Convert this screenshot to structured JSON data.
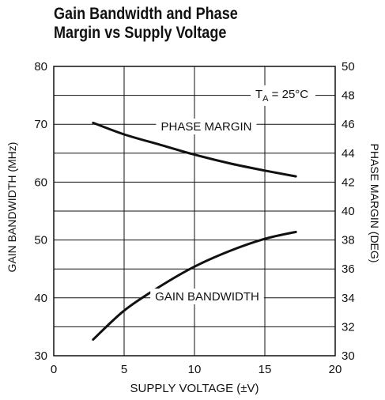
{
  "chart_data": {
    "type": "line",
    "title_lines": [
      "Gain Bandwidth and Phase",
      "Margin vs Supply Voltage"
    ],
    "xlabel": "SUPPLY VOLTAGE (±V)",
    "ylabel_left": "GAIN BANDWIDTH (MHz)",
    "ylabel_right": "PHASE MARGIN (DEG)",
    "xlim": [
      0,
      20
    ],
    "ylim_left": [
      30,
      80
    ],
    "ylim_right": [
      30,
      50
    ],
    "x_ticks": [
      "0",
      "5",
      "10",
      "15",
      "20"
    ],
    "y_left_ticks": [
      "30",
      "40",
      "50",
      "60",
      "70",
      "80"
    ],
    "y_right_ticks": [
      "30",
      "32",
      "34",
      "36",
      "38",
      "40",
      "42",
      "44",
      "46",
      "48",
      "50"
    ],
    "grid": true,
    "annotation": {
      "main": "T",
      "sub": "A",
      "rest": " = 25°C"
    },
    "series": [
      {
        "name": "PHASE MARGIN",
        "axis": "right",
        "x": [
          2.8,
          5,
          7.5,
          10,
          12.5,
          15,
          17.2
        ],
        "y": [
          46.1,
          45.3,
          44.6,
          43.9,
          43.3,
          42.8,
          42.4
        ]
      },
      {
        "name": "GAIN BANDWIDTH",
        "axis": "left",
        "x": [
          2.8,
          5,
          7.5,
          10,
          12.5,
          15,
          17.2
        ],
        "y": [
          32.8,
          37.8,
          41.9,
          45.4,
          48.1,
          50.2,
          51.4
        ]
      }
    ]
  }
}
